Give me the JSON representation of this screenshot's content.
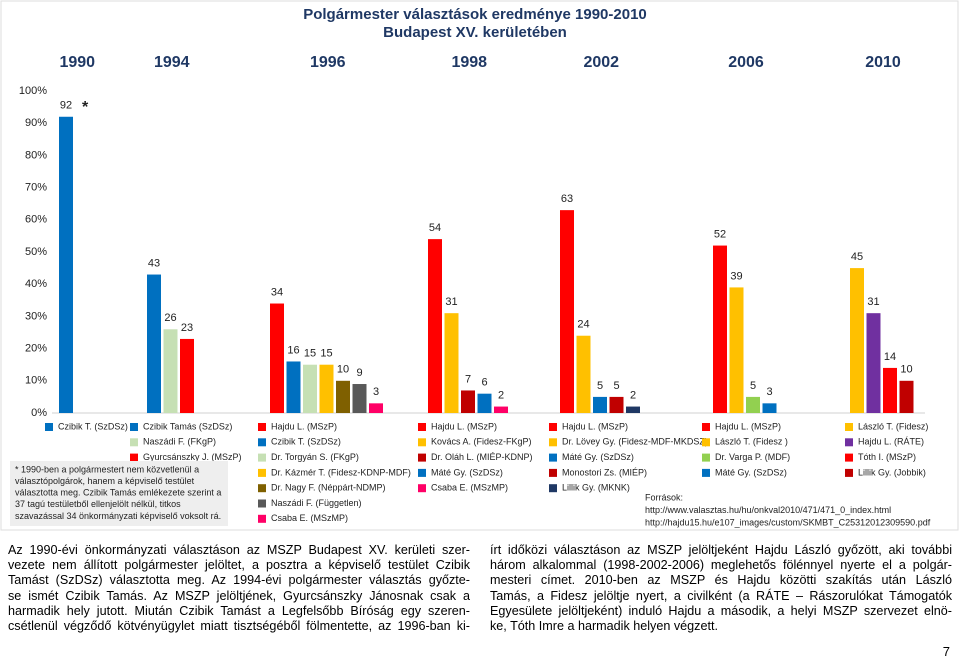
{
  "chart_data": {
    "type": "bar",
    "title": "Polgármester választások eredménye 1990-2010",
    "subtitle": "Budapest XV. kerületében",
    "ylim": [
      0,
      100
    ],
    "yticks": [
      {
        "value": 0,
        "label": "0%"
      },
      {
        "value": 10,
        "label": "10%"
      },
      {
        "value": 20,
        "label": "20%"
      },
      {
        "value": 30,
        "label": "30%"
      },
      {
        "value": 40,
        "label": "40%"
      },
      {
        "value": 50,
        "label": "50%"
      },
      {
        "value": 60,
        "label": "60%"
      },
      {
        "value": 70,
        "label": "70%"
      },
      {
        "value": 80,
        "label": "80%"
      },
      {
        "value": 90,
        "label": "90%"
      },
      {
        "value": 100,
        "label": "100%"
      }
    ],
    "annotation": "*",
    "groups": [
      {
        "year": "1990",
        "bars": [
          {
            "name": "Czibik T. (SzDSz)",
            "color": "#0070c0",
            "value": 92
          }
        ]
      },
      {
        "year": "1994",
        "bars": [
          {
            "name": "Czibik Tamás (SzDSz)",
            "color": "#0070c0",
            "value": 43
          },
          {
            "name": "Naszádi F. (FKgP)",
            "color": "#c6e0b4",
            "value": 26
          },
          {
            "name": "Gyurcsánszky J. (MSzP)",
            "color": "#ff0000",
            "value": 23
          }
        ]
      },
      {
        "year": "1996",
        "bars": [
          {
            "name": "Hajdu L. (MSzP)",
            "color": "#ff0000",
            "value": 34
          },
          {
            "name": "Czibik T. (SzDSz)",
            "color": "#0070c0",
            "value": 16
          },
          {
            "name": "Dr. Torgyán S. (FKgP)",
            "color": "#c6e0b4",
            "value": 15
          },
          {
            "name": "Dr. Kázmér T. (Fidesz-KDNP-MDF)",
            "color": "#ffc000",
            "value": 15
          },
          {
            "name": "Dr. Nagy F. (Néppárt-NDMP)",
            "color": "#7f6000",
            "value": 10
          },
          {
            "name": "Naszádi F. (Független)",
            "color": "#595959",
            "value": 9
          },
          {
            "name": "Csaba E. (MSzMP)",
            "color": "#ff0066",
            "value": 3
          }
        ]
      },
      {
        "year": "1998",
        "bars": [
          {
            "name": "Hajdu L. (MSzP)",
            "color": "#ff0000",
            "value": 54
          },
          {
            "name": "Kovács A. (Fidesz-FKgP)",
            "color": "#ffc000",
            "value": 31
          },
          {
            "name": "Dr. Oláh L. (MIÉP-KDNP)",
            "color": "#c00000",
            "value": 7
          },
          {
            "name": "Máté Gy. (SzDSz)",
            "color": "#0070c0",
            "value": 6
          },
          {
            "name": "Csaba E. (MSzMP)",
            "color": "#ff0066",
            "value": 2
          }
        ]
      },
      {
        "year": "2002",
        "bars": [
          {
            "name": "Hajdu L. (MSzP)",
            "color": "#ff0000",
            "value": 63
          },
          {
            "name": "Dr. Lövey Gy. (Fidesz-MDF-MKDSZ)",
            "color": "#ffc000",
            "value": 24
          },
          {
            "name": "Máté Gy. (SzDSz)",
            "color": "#0070c0",
            "value": 5
          },
          {
            "name": "Monostori Zs. (MIÉP)",
            "color": "#c00000",
            "value": 5
          },
          {
            "name": "Lillik Gy. (MKNK)",
            "color": "#1f3864",
            "value": 2
          }
        ]
      },
      {
        "year": "2006",
        "bars": [
          {
            "name": "Hajdu L. (MSzP)",
            "color": "#ff0000",
            "value": 52
          },
          {
            "name": "László T. (Fidesz )",
            "color": "#ffc000",
            "value": 39
          },
          {
            "name": "Dr. Varga P. (MDF)",
            "color": "#92d050",
            "value": 5
          },
          {
            "name": "Máté Gy. (SzDSz)",
            "color": "#0070c0",
            "value": 3
          }
        ]
      },
      {
        "year": "2010",
        "bars": [
          {
            "name": "László T. (Fidesz)",
            "color": "#ffc000",
            "value": 45
          },
          {
            "name": "Hajdu L. (RÁTE)",
            "color": "#7030a0",
            "value": 31
          },
          {
            "name": "Tóth I. (MSzP)",
            "color": "#ff0000",
            "value": 14
          },
          {
            "name": "Lillik Gy. (Jobbik)",
            "color": "#c00000",
            "value": 10
          }
        ]
      }
    ],
    "footnote": [
      "* 1990-ben a polgármestert nem közvetlenül a",
      "választópolgárok, hanem a képviselő testület",
      "választotta meg. Czibik Tamás emlékezete szerint a",
      "37 tagú testületből ellenjelölt nélkül, titkos",
      "szavazással 34 önkormányzati képviselő voksolt rá."
    ],
    "sources": [
      "Források:",
      "http://www.valasztas.hu/hu/onkval2010/471/471_0_index.html",
      "http://hajdu15.hu/e107_images/custom/SKMBT_C25312012309590.pdf"
    ]
  },
  "text": {
    "left": [
      "Az 1990-évi önkormányzati választáson az MSZP Budapest XV. kerületi szer-",
      "vezete nem állított polgármester jelöltet, a posztra a képviselő testület Czibik",
      "Tamást (SzDSz) választotta meg. Az 1994-évi polgármester választás győzte-",
      "se ismét Czibik Tamás. Az MSZP jelöltjének, Gyurcsánszky Jánosnak csak a",
      "harmadik hely jutott. Miután Czibik Tamást a Legfelsőbb Bíróság egy szeren-",
      "csétlenül végződő kötvényügylet miatt tisztségéből fölmentette, az 1996-ban ki-"
    ],
    "right": [
      "írt időközi választáson az MSZP jelöltjeként Hajdu László győzött, aki további",
      "három alkalommal (1998-2002-2006) meglehetős fölénnyel nyerte el a polgár-",
      "mesteri címet. 2010-ben az MSZP és Hajdu közötti szakítás után László",
      "Tamás, a Fidesz jelöltje nyert, a civilként (a RÁTE – Rászorulókat Támogatók",
      "Egyesülete jelöltjeként) induló Hajdu a második, a helyi MSZP szervezet elnö-",
      "ke, Tóth Imre a harmadik helyen végzett."
    ],
    "page_number": "7"
  }
}
